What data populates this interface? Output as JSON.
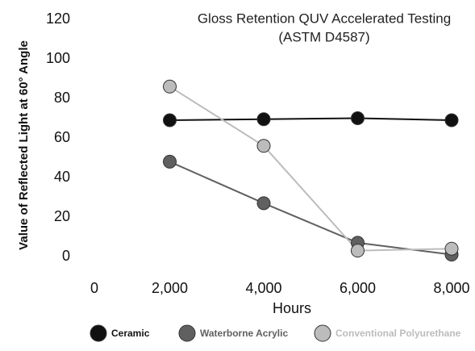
{
  "chart_data": {
    "type": "line",
    "title_lines": [
      "Gloss Retention QUV Accelerated Testing",
      "(ASTM D4587)"
    ],
    "x_label": "Hours",
    "y_label": "Value of Reflected Light at 60° Angle",
    "x": [
      2000,
      4000,
      6000,
      8000
    ],
    "series": [
      {
        "name": "Ceramic",
        "color": "#111111",
        "values": [
          69,
          69.5,
          70,
          69
        ]
      },
      {
        "name": "Waterborne Acrylic",
        "color": "#606060",
        "values": [
          48,
          27,
          7,
          1
        ]
      },
      {
        "name": "Conventional Polyurethane",
        "color": "#bcbcbc",
        "values": [
          86,
          56,
          3,
          4
        ]
      }
    ],
    "xlim": [
      0,
      8000
    ],
    "xticks": [
      0,
      {
        "value": 2000,
        "label": "2,000"
      },
      {
        "value": 4000,
        "label": "4,000"
      },
      {
        "value": 6000,
        "label": "6,000"
      },
      {
        "value": 8000,
        "label": "8,000"
      }
    ],
    "ylim": [
      0,
      120
    ],
    "yticks": [
      0,
      20,
      40,
      60,
      80,
      100,
      120
    ],
    "legend": "bottom"
  }
}
